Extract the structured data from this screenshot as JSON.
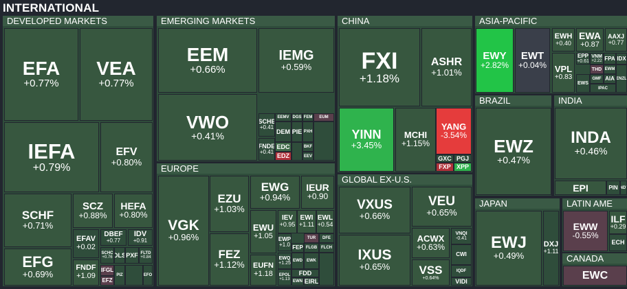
{
  "title": "INTERNATIONAL",
  "groups": {
    "developed": "DEVELOPED MARKETS",
    "emerging": "EMERGING MARKETS",
    "china": "CHINA",
    "asia": "ASIA-PACIFIC",
    "europe": "EUROPE",
    "global": "GLOBAL EX-U.S.",
    "brazil": "BRAZIL",
    "india": "INDIA",
    "japan": "JAPAN",
    "latam": "LATIN AME",
    "canada": "CANADA"
  },
  "tiles": {
    "EFA": {
      "s": "EFA",
      "c": "+0.77%"
    },
    "VEA": {
      "s": "VEA",
      "c": "+0.77%"
    },
    "IEFA": {
      "s": "IEFA",
      "c": "+0.79%"
    },
    "EFV": {
      "s": "EFV",
      "c": "+0.80%"
    },
    "SCHF": {
      "s": "SCHF",
      "c": "+0.71%"
    },
    "SCZ": {
      "s": "SCZ",
      "c": "+0.88%"
    },
    "HEFA": {
      "s": "HEFA",
      "c": "+0.80%"
    },
    "EFG": {
      "s": "EFG",
      "c": "+0.69%"
    },
    "EFAV": {
      "s": "EFAV",
      "c": "+0.02"
    },
    "DBEF": {
      "s": "DBEF",
      "c": "+0.77"
    },
    "IDV": {
      "s": "IDV",
      "c": "+0.91"
    },
    "FNDF": {
      "s": "FNDF",
      "c": "+1.09"
    },
    "SCHC": {
      "s": "SCHC",
      "c": "+0.76"
    },
    "DLS": {
      "s": "DLS",
      "c": ""
    },
    "PXF": {
      "s": "PXF",
      "c": ""
    },
    "FLTD": {
      "s": "FLTD",
      "c": "+0.84"
    },
    "IFGL": {
      "s": "IFGL",
      "c": ""
    },
    "EFZ": {
      "s": "EFZ",
      "c": ""
    },
    "PIZ": {
      "s": "PIZ",
      "c": ""
    },
    "EFO": {
      "s": "EFO",
      "c": ""
    },
    "EEM": {
      "s": "EEM",
      "c": "+0.66%"
    },
    "IEMG": {
      "s": "IEMG",
      "c": "+0.59%"
    },
    "VWO": {
      "s": "VWO",
      "c": "+0.41%"
    },
    "SCHE": {
      "s": "SCHE",
      "c": "+0.41"
    },
    "FNDE": {
      "s": "FNDE",
      "c": "+0.41"
    },
    "EEMV": {
      "s": "EEMV",
      "c": ""
    },
    "DGS": {
      "s": "DGS",
      "c": ""
    },
    "FEM": {
      "s": "FEM",
      "c": ""
    },
    "EUM": {
      "s": "EUM",
      "c": ""
    },
    "DEM": {
      "s": "DEM",
      "c": ""
    },
    "PIE": {
      "s": "PIE",
      "c": ""
    },
    "PXH": {
      "s": "PXH",
      "c": ""
    },
    "EDC": {
      "s": "EDC",
      "c": ""
    },
    "BKF": {
      "s": "BKF",
      "c": ""
    },
    "EDZ": {
      "s": "EDZ",
      "c": ""
    },
    "EEV": {
      "s": "EEV",
      "c": ""
    },
    "FXI": {
      "s": "FXI",
      "c": "+1.18%"
    },
    "ASHR": {
      "s": "ASHR",
      "c": "+1.01%"
    },
    "YINN": {
      "s": "YINN",
      "c": "+3.45%"
    },
    "MCHI": {
      "s": "MCHI",
      "c": "+1.15%"
    },
    "YANG": {
      "s": "YANG",
      "c": "-3.54%"
    },
    "GXC": {
      "s": "GXC",
      "c": ""
    },
    "PGJ": {
      "s": "PGJ",
      "c": ""
    },
    "FXP": {
      "s": "FXP",
      "c": ""
    },
    "XPP": {
      "s": "XPP",
      "c": ""
    },
    "EWY": {
      "s": "EWY",
      "c": "+2.82%"
    },
    "EWT": {
      "s": "EWT",
      "c": "+0.04%"
    },
    "EWH": {
      "s": "EWH",
      "c": "+0.40"
    },
    "EWA": {
      "s": "EWA",
      "c": "+0.87"
    },
    "AAXJ": {
      "s": "AAXJ",
      "c": "+0.77"
    },
    "VPL": {
      "s": "VPL",
      "c": "+0.83"
    },
    "EPP": {
      "s": "EPP",
      "c": "+0.61"
    },
    "VNM": {
      "s": "VNM",
      "c": "+2.22"
    },
    "FPA": {
      "s": "FPA",
      "c": ""
    },
    "IDX": {
      "s": "IDX",
      "c": ""
    },
    "THD": {
      "s": "THD",
      "c": ""
    },
    "EWM": {
      "s": "EWM",
      "c": ""
    },
    "EWS": {
      "s": "EWS",
      "c": ""
    },
    "GMF": {
      "s": "GMF",
      "c": ""
    },
    "AIA": {
      "s": "AIA",
      "c": ""
    },
    "IPAC": {
      "s": "IPAC",
      "c": ""
    },
    "ENZL": {
      "s": "ENZL",
      "c": ""
    },
    "EWZ": {
      "s": "EWZ",
      "c": "+0.47%"
    },
    "INDA": {
      "s": "INDA",
      "c": "+0.46%"
    },
    "EPI": {
      "s": "EPI",
      "c": ""
    },
    "PIN": {
      "s": "PIN",
      "c": ""
    },
    "INDY": {
      "s": "INDY",
      "c": ""
    },
    "VGK": {
      "s": "VGK",
      "c": "+0.96%"
    },
    "EZU": {
      "s": "EZU",
      "c": "+1.03%"
    },
    "EWG": {
      "s": "EWG",
      "c": "+0.94%"
    },
    "IEUR": {
      "s": "IEUR",
      "c": "+0.90"
    },
    "FEZ": {
      "s": "FEZ",
      "c": "+1.12%"
    },
    "EWU": {
      "s": "EWU",
      "c": "+1.05"
    },
    "IEV": {
      "s": "IEV",
      "c": "+0.95"
    },
    "EWI": {
      "s": "EWI",
      "c": "+1.11"
    },
    "EWL": {
      "s": "EWL",
      "c": "+0.54"
    },
    "EWP": {
      "s": "EWP",
      "c": "+1.0"
    },
    "TUR": {
      "s": "TUR",
      "c": ""
    },
    "DFE": {
      "s": "DFE",
      "c": ""
    },
    "FEP": {
      "s": "FEP",
      "c": ""
    },
    "FLGB": {
      "s": "FLGB",
      "c": ""
    },
    "FLCH": {
      "s": "FLCH",
      "c": ""
    },
    "EUFN": {
      "s": "EUFN",
      "c": "+1.18"
    },
    "EWQ": {
      "s": "EWQ",
      "c": "+1.25"
    },
    "EWD": {
      "s": "EWD",
      "c": ""
    },
    "EWK": {
      "s": "EWK",
      "c": ""
    },
    "EPOL": {
      "s": "EPOL",
      "c": "+1.13"
    },
    "FDD": {
      "s": "FDD",
      "c": ""
    },
    "EWN": {
      "s": "EWN",
      "c": ""
    },
    "EIRL": {
      "s": "EIRL",
      "c": ""
    },
    "VXUS": {
      "s": "VXUS",
      "c": "+0.66%"
    },
    "VEU": {
      "s": "VEU",
      "c": "+0.65%"
    },
    "IXUS": {
      "s": "IXUS",
      "c": "+0.65%"
    },
    "ACWX": {
      "s": "ACWX",
      "c": "+0.63%"
    },
    "VNQI": {
      "s": "VNQI",
      "c": "-0.41"
    },
    "CWI": {
      "s": "CWI",
      "c": ""
    },
    "VSS": {
      "s": "VSS",
      "c": "+0.64%"
    },
    "VIDI": {
      "s": "VIDI",
      "c": ""
    },
    "IQDF": {
      "s": "IQDF",
      "c": ""
    },
    "EWJ": {
      "s": "EWJ",
      "c": "+0.49%"
    },
    "DXJ": {
      "s": "DXJ",
      "c": "+1.11"
    },
    "EWW": {
      "s": "EWW",
      "c": "-0.55%"
    },
    "ILF": {
      "s": "ILF",
      "c": "+0.29"
    },
    "ECH": {
      "s": "ECH",
      "c": ""
    },
    "EWC": {
      "s": "EWC",
      "c": ""
    }
  }
}
